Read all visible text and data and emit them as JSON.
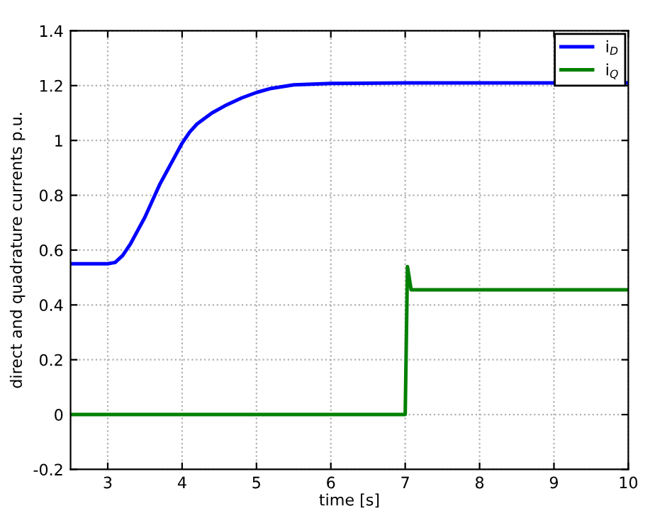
{
  "chart_data": {
    "type": "line",
    "xlabel": "time [s]",
    "ylabel": "direct and quadrature currents p.u.",
    "xlim": [
      2.5,
      10
    ],
    "ylim": [
      -0.2,
      1.4
    ],
    "xticks": [
      3,
      4,
      5,
      6,
      7,
      8,
      9,
      10
    ],
    "yticks": [
      -0.2,
      0,
      0.2,
      0.4,
      0.6,
      0.8,
      1,
      1.2,
      1.4
    ],
    "grid": true,
    "legend": "top right",
    "line_style": "solid",
    "series": [
      {
        "name": "i$_{D}$",
        "color": "#0000ff",
        "x": [
          2.5,
          3.0,
          3.1,
          3.2,
          3.3,
          3.4,
          3.5,
          3.6,
          3.7,
          3.8,
          3.9,
          4.0,
          4.1,
          4.2,
          4.4,
          4.6,
          4.8,
          5.0,
          5.2,
          5.5,
          6.0,
          7.0,
          10.0
        ],
        "values": [
          0.55,
          0.55,
          0.555,
          0.58,
          0.62,
          0.67,
          0.72,
          0.78,
          0.84,
          0.89,
          0.94,
          0.99,
          1.03,
          1.06,
          1.1,
          1.13,
          1.155,
          1.175,
          1.19,
          1.203,
          1.208,
          1.21,
          1.21
        ]
      },
      {
        "name": "i$_{Q}$",
        "color": "#008000",
        "x": [
          2.5,
          7.0,
          7.03,
          7.08,
          10.0
        ],
        "values": [
          0,
          0,
          0.54,
          0.455,
          0.455
        ]
      }
    ]
  }
}
